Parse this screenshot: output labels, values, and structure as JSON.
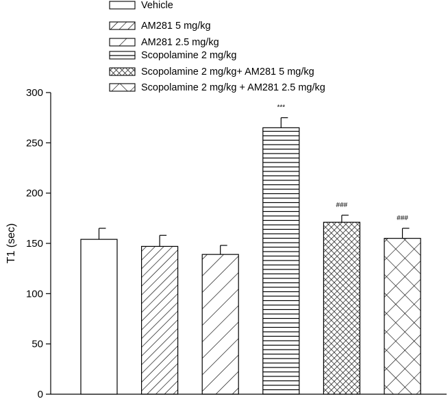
{
  "chart_data": {
    "type": "bar",
    "title": "",
    "xlabel": "",
    "ylabel": "T1 (sec)",
    "ylim": [
      0,
      300
    ],
    "yticks": [
      0,
      50,
      100,
      150,
      200,
      250,
      300
    ],
    "grid": false,
    "legend_position": "top",
    "series": [
      {
        "name": "Vehicle",
        "value": 154,
        "error": 11,
        "pattern": "none",
        "annotation": ""
      },
      {
        "name": "AM281 5 mg/kg",
        "value": 147,
        "error": 11,
        "pattern": "dense-diagonal",
        "annotation": ""
      },
      {
        "name": "AM281 2.5 mg/kg",
        "value": 139,
        "error": 9,
        "pattern": "sparse-diagonal",
        "annotation": ""
      },
      {
        "name": "Scopolamine 2 mg/kg",
        "value": 265,
        "error": 10,
        "pattern": "horizontal",
        "annotation": "***"
      },
      {
        "name": "Scopolamine 2 mg/kg+ AM281 5 mg/kg",
        "value": 171,
        "error": 7,
        "pattern": "dense-crosshatch",
        "annotation": "###"
      },
      {
        "name": "Scopolamine 2 mg/kg + AM281 2.5 mg/kg",
        "value": 155,
        "error": 10,
        "pattern": "sparse-crosshatch",
        "annotation": "###"
      }
    ]
  }
}
